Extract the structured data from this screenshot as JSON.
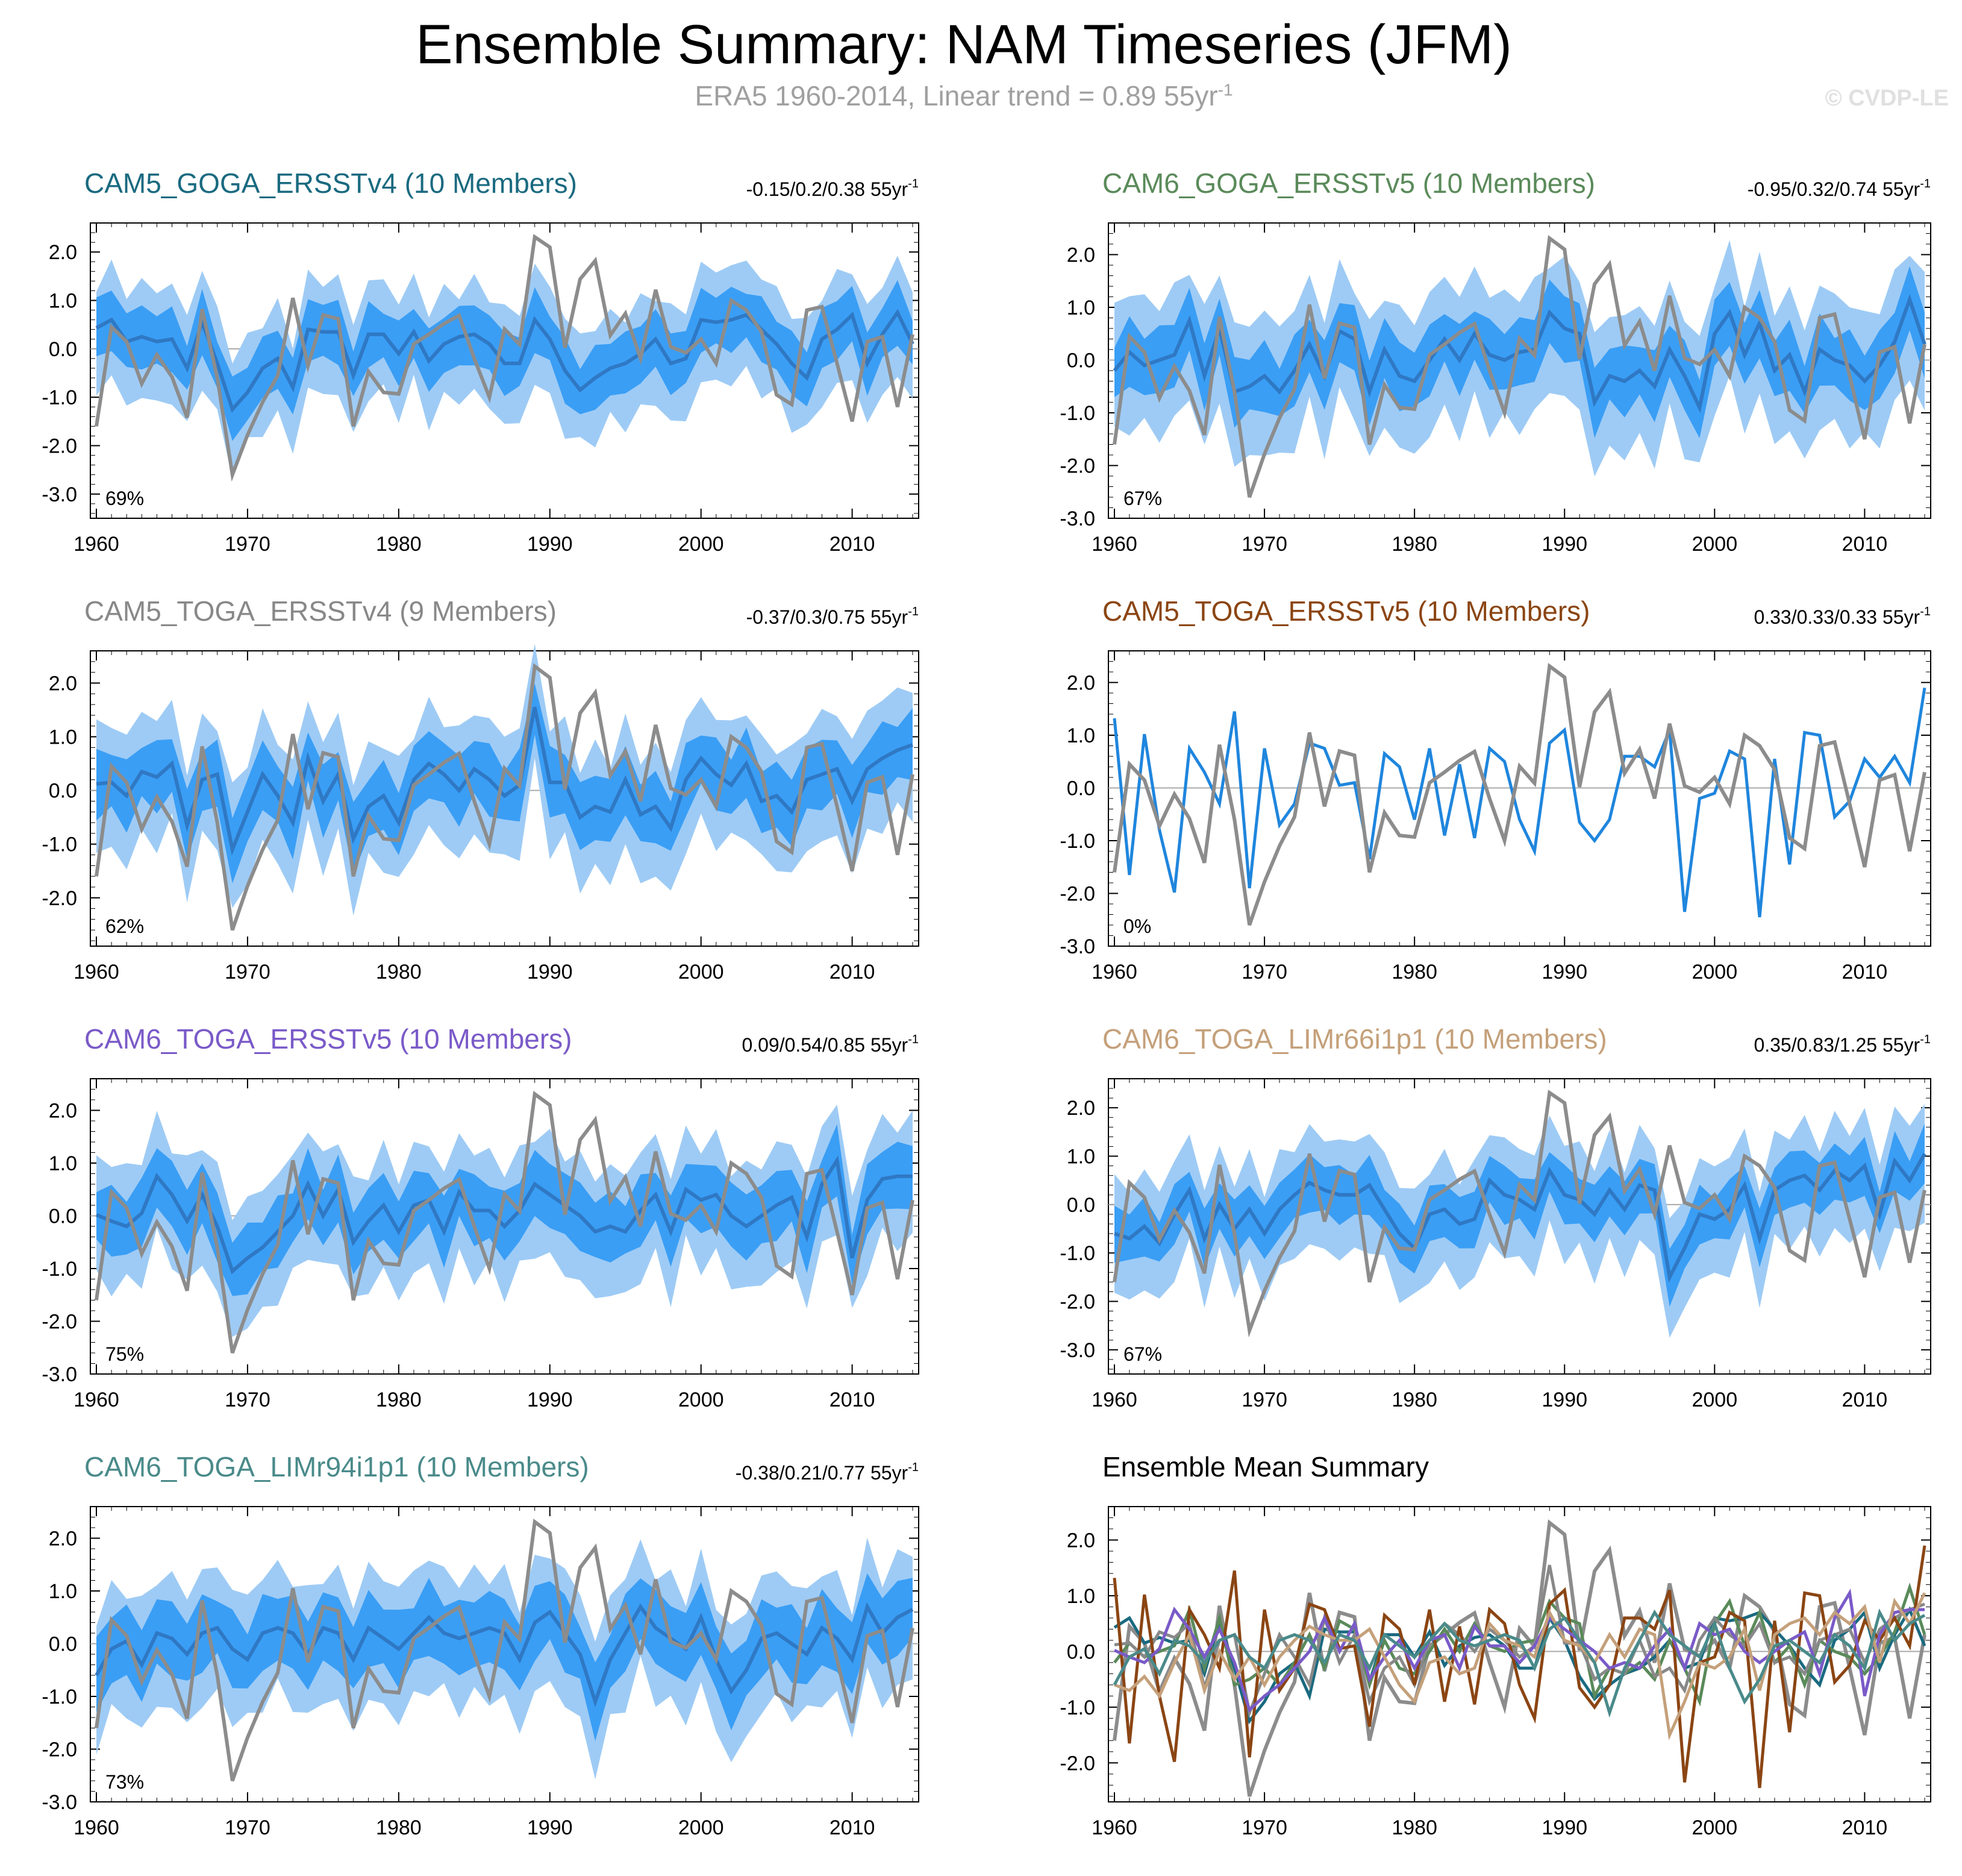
{
  "title": "Ensemble Summary: NAM Timeseries (JFM)",
  "subtitle": "ERA5 1960-2014, Linear trend = 0.89 55yr",
  "subtitle_sup": "-1",
  "watermark": "© CVDP-LE",
  "colors": {
    "obs": "#8c8c8c",
    "mean_line": "#2f78c4",
    "inner_band": "#3a9ef5",
    "outer_band": "#9ecbf5",
    "single_line": "#1f86dd",
    "zero_line": "#aaaaaa"
  },
  "x_ticks": [
    "1960",
    "1970",
    "1980",
    "1990",
    "2000",
    "2010"
  ],
  "years_start": 1960,
  "years_end": 2014,
  "obs_series": [
    -1.6,
    0.45,
    0.15,
    -0.72,
    -0.12,
    -0.58,
    -1.42,
    0.82,
    -0.6,
    -2.6,
    -1.78,
    -1.1,
    -0.55,
    1.05,
    -0.35,
    0.7,
    0.62,
    -1.6,
    -0.47,
    -0.9,
    -0.93,
    0.1,
    0.3,
    0.52,
    0.69,
    -0.2,
    -1.0,
    0.41,
    0.09,
    2.31,
    2.1,
    0.02,
    1.44,
    1.82,
    0.28,
    0.73,
    -0.2,
    1.22,
    0.04,
    -0.08,
    0.2,
    -0.3,
    1.0,
    0.8,
    0.35,
    -0.95,
    -1.15,
    0.8,
    0.87,
    -0.3,
    -1.5,
    0.15,
    0.25,
    -1.2,
    0.3
  ],
  "chart_data": [
    {
      "type": "line",
      "panel": "CAM5_GOGA_ERSSTv4",
      "title": "CAM5_GOGA_ERSSTv4 (10 Members)",
      "title_color": "#1a6a80",
      "trend": "-0.15/0.2/0.38 55yr",
      "trend_sup": "-1",
      "percent": "69%",
      "ylim": [
        -3.5,
        2.6
      ],
      "yticks": [
        "2.0",
        "1.0",
        "0.0",
        "-1.0",
        "-2.0",
        "-3.0"
      ],
      "ytick_values": [
        2,
        1,
        0,
        -1,
        -2,
        -3
      ],
      "has_bands": true,
      "ensemble_mean": [
        0.43,
        0.6,
        0.15,
        0.25,
        0.15,
        0.2,
        -0.4,
        0.55,
        -0.3,
        -1.25,
        -0.9,
        -0.4,
        -0.2,
        -0.8,
        0.4,
        0.35,
        0.35,
        -0.55,
        0.3,
        0.3,
        -0.1,
        0.35,
        -0.25,
        0.1,
        0.25,
        0.3,
        0.1,
        -0.3,
        -0.3,
        0.6,
        0.2,
        -0.45,
        -0.85,
        -0.6,
        -0.4,
        -0.3,
        -0.1,
        0.2,
        -0.3,
        -0.2,
        0.6,
        0.55,
        0.6,
        0.7,
        0.4,
        0.1,
        -0.3,
        -0.6,
        0.2,
        0.4,
        0.7,
        -0.3,
        0.3,
        0.75,
        0.1
      ],
      "spread_inner": 0.55,
      "spread_outer": 1.0
    },
    {
      "type": "line",
      "panel": "CAM6_GOGA_ERSSTv5",
      "title": "CAM6_GOGA_ERSSTv5 (10 Members)",
      "title_color": "#5a8a5a",
      "trend": "-0.95/0.32/0.74 55yr",
      "trend_sup": "-1",
      "percent": "67%",
      "ylim": [
        -3.0,
        2.6
      ],
      "yticks": [
        "2.0",
        "1.0",
        "0.0",
        "-1.0",
        "-2.0",
        "-3.0"
      ],
      "ytick_values": [
        2,
        1,
        0,
        -1,
        -2,
        -3
      ],
      "has_bands": true,
      "ensemble_mean": [
        -0.2,
        0.15,
        -0.1,
        0.0,
        0.1,
        0.75,
        -0.3,
        0.6,
        -0.6,
        -0.5,
        -0.3,
        -0.6,
        -0.2,
        0.3,
        -0.3,
        0.55,
        0.4,
        -0.6,
        0.2,
        -0.3,
        -0.4,
        0.0,
        0.4,
        0.0,
        0.5,
        0.1,
        0.0,
        0.15,
        0.2,
        0.9,
        0.6,
        0.5,
        -0.8,
        -0.3,
        -0.4,
        -0.2,
        -0.5,
        0.2,
        -0.3,
        -0.9,
        0.5,
        0.9,
        0.1,
        0.7,
        -0.2,
        0.1,
        -0.6,
        0.2,
        0.0,
        -0.1,
        -0.4,
        -0.1,
        0.35,
        1.15,
        0.3
      ],
      "spread_inner": 0.55,
      "spread_outer": 1.1
    },
    {
      "type": "line",
      "panel": "CAM5_TOGA_ERSSTv4",
      "title": "CAM5_TOGA_ERSSTv4 (9 Members)",
      "title_color": "#888888",
      "trend": "-0.37/0.3/0.75 55yr",
      "trend_sup": "-1",
      "percent": "62%",
      "ylim": [
        -2.9,
        2.6
      ],
      "yticks": [
        "2.0",
        "1.0",
        "0.0",
        "-1.0",
        "-2.0"
      ],
      "ytick_values": [
        2,
        1,
        0,
        -1,
        -2
      ],
      "has_bands": true,
      "ensemble_mean": [
        0.12,
        0.15,
        -0.1,
        0.35,
        0.25,
        0.5,
        -0.65,
        0.2,
        0.3,
        -1.1,
        -0.4,
        0.3,
        -0.1,
        -0.6,
        0.6,
        -0.2,
        0.3,
        -0.9,
        -0.3,
        -0.1,
        -0.6,
        0.2,
        0.5,
        0.3,
        0.0,
        0.4,
        0.2,
        -0.1,
        0.1,
        1.55,
        0.15,
        0.15,
        -0.5,
        -0.3,
        -0.4,
        0.2,
        -0.45,
        -0.3,
        -0.7,
        0.2,
        0.6,
        0.3,
        0.1,
        0.5,
        -0.2,
        -0.1,
        -0.4,
        0.2,
        0.3,
        0.4,
        -0.2,
        0.4,
        0.6,
        0.75,
        0.85
      ],
      "spread_inner": 0.55,
      "spread_outer": 1.0
    },
    {
      "type": "line",
      "panel": "CAM5_TOGA_ERSSTv5",
      "title": "CAM5_TOGA_ERSSTv5 (10 Members)",
      "title_color": "#8b4513",
      "trend": "0.33/0.33/0.33 55yr",
      "trend_sup": "-1",
      "percent": "0%",
      "ylim": [
        -3.0,
        2.6
      ],
      "yticks": [
        "2.0",
        "1.0",
        "0.0",
        "-1.0",
        "-2.0",
        "-3.0"
      ],
      "ytick_values": [
        2,
        1,
        0,
        -1,
        -2,
        -3
      ],
      "has_bands": false,
      "ensemble_mean": [
        1.32,
        -1.65,
        1.02,
        -0.8,
        -1.98,
        0.75,
        0.3,
        -0.3,
        1.45,
        -1.9,
        0.75,
        -0.7,
        -0.3,
        0.85,
        0.75,
        0.05,
        0.1,
        -1.35,
        0.65,
        0.4,
        -0.6,
        0.75,
        -0.9,
        0.45,
        -0.95,
        0.75,
        0.5,
        -0.6,
        -1.2,
        0.85,
        1.1,
        -0.65,
        -1.0,
        -0.6,
        0.6,
        0.6,
        0.4,
        1.1,
        -2.35,
        -0.2,
        -0.1,
        0.7,
        0.55,
        -2.45,
        0.55,
        -1.45,
        1.05,
        1.0,
        -0.55,
        -0.25,
        0.55,
        0.2,
        0.6,
        0.1,
        1.9
      ],
      "spread_inner": 0,
      "spread_outer": 0
    },
    {
      "type": "line",
      "panel": "CAM6_TOGA_ERSSTv5",
      "title": "CAM6_TOGA_ERSSTv5 (10 Members)",
      "title_color": "#7a5ac8",
      "trend": "0.09/0.54/0.85 55yr",
      "trend_sup": "-1",
      "percent": "75%",
      "ylim": [
        -3.0,
        2.6
      ],
      "yticks": [
        "2.0",
        "1.0",
        "0.0",
        "-1.0",
        "-2.0",
        "-3.0"
      ],
      "ytick_values": [
        2,
        1,
        0,
        -1,
        -2,
        -3
      ],
      "has_bands": true,
      "ensemble_mean": [
        0.02,
        -0.1,
        -0.2,
        0.05,
        0.75,
        0.4,
        -0.1,
        0.4,
        -0.2,
        -1.05,
        -0.8,
        -0.6,
        -0.3,
        0.0,
        0.6,
        0.0,
        0.5,
        -0.5,
        -0.1,
        0.2,
        -0.3,
        0.2,
        0.3,
        -0.3,
        0.45,
        0.1,
        0.1,
        -0.2,
        0.1,
        0.6,
        0.4,
        0.2,
        0.0,
        -0.3,
        -0.2,
        -0.3,
        0.1,
        0.4,
        -0.3,
        0.5,
        0.3,
        0.4,
        0.0,
        -0.2,
        0.0,
        0.2,
        0.35,
        -0.4,
        0.6,
        1.05,
        -0.8,
        0.3,
        0.7,
        0.75,
        0.75
      ],
      "spread_inner": 0.55,
      "spread_outer": 1.0
    },
    {
      "type": "line",
      "panel": "CAM6_TOGA_LIMr66i1p1",
      "title": "CAM6_TOGA_LIMr66i1p1 (10 Members)",
      "title_color": "#c4a07a",
      "trend": "0.35/0.83/1.25 55yr",
      "trend_sup": "-1",
      "percent": "67%",
      "ylim": [
        -3.5,
        2.6
      ],
      "yticks": [
        "2.0",
        "1.0",
        "0.0",
        "-1.0",
        "-2.0",
        "-3.0"
      ],
      "ytick_values": [
        2,
        1,
        0,
        -1,
        -2,
        -3
      ],
      "has_bands": true,
      "ensemble_mean": [
        -0.6,
        -0.7,
        -0.45,
        -0.8,
        -0.2,
        0.3,
        -0.7,
        0.0,
        -0.5,
        -0.1,
        -0.6,
        -0.1,
        0.2,
        0.45,
        0.3,
        0.2,
        0.2,
        0.4,
        -0.1,
        -0.6,
        -0.9,
        -0.2,
        -0.1,
        -0.4,
        -0.3,
        0.5,
        0.2,
        0.1,
        -0.1,
        0.7,
        0.2,
        0.1,
        -0.2,
        0.3,
        -0.1,
        0.4,
        0.3,
        -1.5,
        -0.9,
        -0.2,
        -0.3,
        -0.1,
        0.4,
        -0.7,
        0.3,
        0.5,
        0.6,
        0.3,
        0.7,
        0.5,
        0.8,
        -0.2,
        0.9,
        0.5,
        1.05
      ],
      "spread_inner": 0.5,
      "spread_outer": 1.0
    },
    {
      "type": "line",
      "panel": "CAM6_TOGA_LIMr94i1p1",
      "title": "CAM6_TOGA_LIMr94i1p1 (10 Members)",
      "title_color": "#4a8a8a",
      "trend": "-0.38/0.21/0.77 55yr",
      "trend_sup": "-1",
      "percent": "73%",
      "ylim": [
        -3.0,
        2.6
      ],
      "yticks": [
        "2.0",
        "1.0",
        "0.0",
        "-1.0",
        "-2.0",
        "-3.0"
      ],
      "ytick_values": [
        2,
        1,
        0,
        -1,
        -2,
        -3
      ],
      "has_bands": true,
      "ensemble_mean": [
        -0.6,
        -0.1,
        0.05,
        -0.4,
        0.2,
        0.1,
        -0.2,
        0.2,
        0.3,
        -0.1,
        -0.3,
        0.2,
        0.3,
        0.2,
        -0.2,
        0.3,
        0.2,
        -0.3,
        0.3,
        0.1,
        -0.1,
        0.2,
        0.5,
        0.2,
        0.1,
        0.2,
        0.3,
        0.2,
        -0.3,
        0.4,
        0.6,
        0.2,
        -0.2,
        -1.1,
        -0.3,
        0.2,
        0.7,
        0.3,
        0.1,
        -0.1,
        0.5,
        -0.3,
        -0.9,
        -0.5,
        0.1,
        0.2,
        0.0,
        -0.2,
        0.3,
        0.1,
        -0.3,
        0.7,
        0.2,
        0.5,
        0.65
      ],
      "spread_inner": 0.6,
      "spread_outer": 1.05
    }
  ],
  "summary": {
    "title": "Ensemble Mean Summary",
    "ylim": [
      -2.7,
      2.6
    ],
    "yticks": [
      "2.0",
      "1.0",
      "0.0",
      "-1.0",
      "-2.0"
    ],
    "ytick_values": [
      2,
      1,
      0,
      -1,
      -2
    ],
    "series_colors": [
      "#1a6a80",
      "#5a8a5a",
      "#888888",
      "#8b4513",
      "#7a5ac8",
      "#c4a07a",
      "#4a8a8a"
    ]
  }
}
